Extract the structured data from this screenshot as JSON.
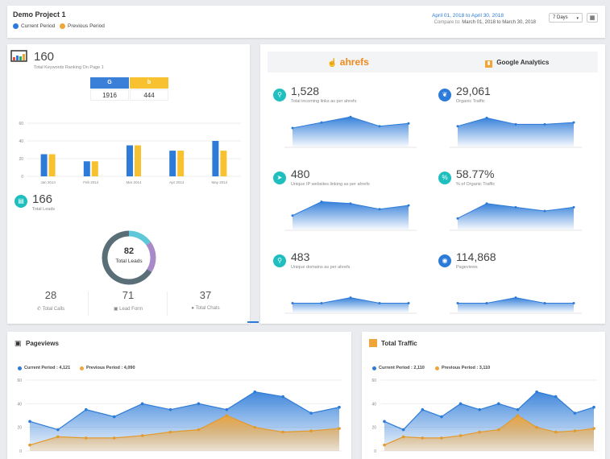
{
  "header": {
    "project_title": "Demo Project 1",
    "legend_current": "Current Period",
    "legend_previous": "Previous Period",
    "date_range": "April 01, 2018 to April 30, 2018",
    "compare_label": "Compare to:",
    "compare_range": "March 01, 2018 to March 30, 2018",
    "period_select": "7 Days",
    "colors": {
      "current": "#2d7bd8",
      "previous": "#f0a53a"
    }
  },
  "rankings": {
    "value": "160",
    "label": "Total Keywords Ranking On Page 1",
    "google_label": "G",
    "bing_label": "b",
    "google_value": "1916",
    "bing_value": "444"
  },
  "leads": {
    "value": "166",
    "label": "Total Leads",
    "donut_value": "82",
    "donut_label": "Total Leads",
    "calls_value": "28",
    "calls_label": "Total Calls",
    "form_value": "71",
    "form_label": "Lead Form",
    "chats_value": "37",
    "chats_label": "Total Chats"
  },
  "tools": {
    "ahrefs": "ahrefs",
    "ga": "Google Analytics"
  },
  "metrics": [
    {
      "value": "1,528",
      "label": "Total incoming links as per ahrefs",
      "icon": "link-icon"
    },
    {
      "value": "29,061",
      "label": "Organic Traffic",
      "icon": "leaf-icon"
    },
    {
      "value": "480",
      "label": "Unique IP websites linking as per ahrefs",
      "icon": "send-icon"
    },
    {
      "value": "58.77%",
      "label": "% of Organic Traffic",
      "icon": "percent-icon"
    },
    {
      "value": "483",
      "label": "Unique domains as per ahrefs",
      "icon": "link-icon"
    },
    {
      "value": "114,868",
      "label": "Pageviews",
      "icon": "eye-icon"
    }
  ],
  "pageviews": {
    "title": "Pageviews",
    "current_label": "Current Period : 4,121",
    "previous_label": "Previous Period : 4,090"
  },
  "traffic": {
    "title": "Total Traffic",
    "current_label": "Current Period : 2,110",
    "previous_label": "Previous Period : 3,110"
  },
  "chart_data": [
    {
      "type": "bar",
      "categories": [
        "Jan 2014",
        "Feb 2014",
        "Mar 2014",
        "Apr 2014",
        "May 2014"
      ],
      "series": [
        {
          "values": [
            25,
            17,
            35,
            29,
            40
          ]
        },
        {
          "values": [
            25,
            17,
            35,
            29,
            29
          ]
        }
      ],
      "yticks": [
        0,
        20,
        40,
        60
      ],
      "ylim": [
        0,
        60
      ],
      "colors": [
        "#2d7bd8",
        "#f7c12f"
      ]
    },
    {
      "type": "donut",
      "values": [
        15,
        19,
        66
      ],
      "colors": [
        "#5ec8d8",
        "#a98ac8",
        "#5a6e78"
      ]
    },
    {
      "type": "area",
      "values": [
        20,
        26,
        32,
        22,
        25
      ]
    },
    {
      "type": "area",
      "values": [
        22,
        31,
        24,
        24,
        26
      ]
    },
    {
      "type": "area",
      "values": [
        15,
        30,
        28,
        22,
        26
      ]
    },
    {
      "type": "area",
      "values": [
        12,
        28,
        24,
        20,
        24
      ]
    },
    {
      "type": "area",
      "values": [
        10,
        10,
        16,
        10,
        10
      ]
    },
    {
      "type": "area",
      "values": [
        10,
        10,
        16,
        10,
        10
      ]
    },
    {
      "type": "area",
      "yticks": [
        0,
        20,
        40,
        60
      ],
      "ylim": [
        0,
        60
      ],
      "series": [
        {
          "name": "Current Period",
          "values": [
            25,
            18,
            35,
            29,
            40,
            35,
            40,
            35,
            50,
            46,
            32,
            37
          ]
        },
        {
          "name": "Previous Period",
          "values": [
            5,
            12,
            11,
            11,
            13,
            16,
            18,
            30,
            20,
            16,
            17,
            19
          ]
        }
      ]
    },
    {
      "type": "area",
      "yticks": [
        0,
        20,
        40,
        60
      ],
      "ylim": [
        0,
        60
      ],
      "series": [
        {
          "name": "Current Period",
          "values": [
            25,
            18,
            35,
            29,
            40,
            35,
            40,
            35,
            50,
            46,
            32,
            37
          ]
        },
        {
          "name": "Previous Period",
          "values": [
            5,
            12,
            11,
            11,
            13,
            16,
            18,
            30,
            20,
            16,
            17,
            19
          ]
        }
      ]
    }
  ]
}
